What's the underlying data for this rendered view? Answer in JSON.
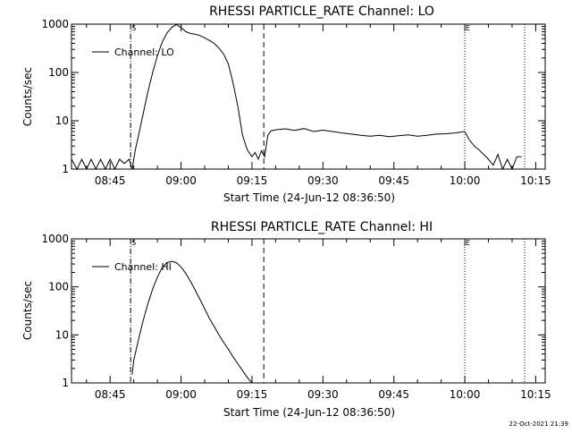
{
  "chart_data": [
    {
      "type": "line",
      "title": "RHESSI PARTICLE_RATE Channel: LO",
      "xlabel": "Start Time (24-Jun-12 08:36:50)",
      "ylabel": "Counts/sec",
      "yscale": "log",
      "ylim": [
        1,
        1000
      ],
      "xlim": [
        "08:36:50",
        "10:17:00"
      ],
      "x_ticks": [
        "08:45",
        "09:00",
        "09:15",
        "09:30",
        "09:45",
        "10:00",
        "10:15"
      ],
      "y_ticks": [
        "1",
        "10",
        "100",
        "1000"
      ],
      "legend": {
        "label": "Channel: LO",
        "placement": "top-left"
      },
      "markers": [
        {
          "time": "08:49:20",
          "style": "dash-dot",
          "label": "S"
        },
        {
          "time": "09:17:30",
          "style": "dashed",
          "label": ""
        },
        {
          "time": "10:00:00",
          "style": "dotted",
          "label": "E"
        },
        {
          "time": "10:12:40",
          "style": "dotted",
          "label": ""
        }
      ],
      "series": [
        {
          "name": "Channel: LO",
          "x": [
            "08:36:50",
            "08:38:00",
            "08:39:00",
            "08:40:00",
            "08:41:00",
            "08:42:00",
            "08:43:00",
            "08:44:00",
            "08:45:00",
            "08:46:00",
            "08:47:00",
            "08:48:00",
            "08:49:00",
            "08:49:40",
            "08:50:20",
            "08:51:00",
            "08:52:00",
            "08:53:00",
            "08:54:00",
            "08:55:00",
            "08:56:00",
            "08:57:00",
            "08:58:00",
            "08:59:00",
            "09:00:00",
            "09:01:00",
            "09:02:00",
            "09:03:00",
            "09:04:00",
            "09:05:00",
            "09:06:00",
            "09:07:00",
            "09:08:00",
            "09:09:00",
            "09:10:00",
            "09:11:00",
            "09:12:00",
            "09:13:00",
            "09:14:00",
            "09:15:00",
            "09:15:40",
            "09:16:20",
            "09:17:00",
            "09:17:40",
            "09:18:20",
            "09:19:00",
            "09:20:00",
            "09:22:00",
            "09:24:00",
            "09:26:00",
            "09:28:00",
            "09:30:00",
            "09:32:00",
            "09:34:00",
            "09:36:00",
            "09:38:00",
            "09:40:00",
            "09:42:00",
            "09:44:00",
            "09:46:00",
            "09:48:00",
            "09:50:00",
            "09:52:00",
            "09:54:00",
            "09:56:00",
            "09:58:00",
            "10:00:00",
            "10:01:00",
            "10:02:00",
            "10:03:00",
            "10:04:00",
            "10:05:00",
            "10:06:00",
            "10:07:00",
            "10:08:00",
            "10:09:00",
            "10:10:00",
            "10:11:00",
            "10:12:00"
          ],
          "y": [
            1.6,
            1.0,
            1.6,
            1.0,
            1.6,
            1.0,
            1.6,
            1.0,
            1.6,
            1.0,
            1.6,
            1.3,
            1.6,
            1.0,
            2.5,
            5,
            14,
            40,
            100,
            220,
            420,
            650,
            850,
            980,
            850,
            700,
            640,
            620,
            580,
            520,
            460,
            400,
            320,
            240,
            150,
            60,
            20,
            5,
            2.5,
            1.8,
            2.2,
            1.6,
            2.4,
            1.8,
            5,
            6.2,
            6.5,
            6.8,
            6.3,
            6.9,
            6.0,
            6.4,
            6.0,
            5.6,
            5.3,
            5.0,
            4.8,
            5.0,
            4.7,
            4.9,
            5.1,
            4.8,
            5.0,
            5.3,
            5.4,
            5.6,
            6.0,
            4.0,
            3.0,
            2.5,
            2.0,
            1.6,
            1.2,
            2.0,
            1.0,
            1.6,
            1.0,
            1.8,
            1.8
          ]
        }
      ]
    },
    {
      "type": "line",
      "title": "RHESSI PARTICLE_RATE Channel: HI",
      "xlabel": "Start Time (24-Jun-12 08:36:50)",
      "ylabel": "Counts/sec",
      "yscale": "log",
      "ylim": [
        1,
        1000
      ],
      "xlim": [
        "08:36:50",
        "10:17:00"
      ],
      "x_ticks": [
        "08:45",
        "09:00",
        "09:15",
        "09:30",
        "09:45",
        "10:00",
        "10:15"
      ],
      "y_ticks": [
        "1",
        "10",
        "100",
        "1000"
      ],
      "legend": {
        "label": "Channel: HI",
        "placement": "top-left"
      },
      "markers": [
        {
          "time": "08:49:20",
          "style": "dash-dot",
          "label": "S"
        },
        {
          "time": "09:17:30",
          "style": "dashed",
          "label": ""
        },
        {
          "time": "10:00:00",
          "style": "dotted",
          "label": "E"
        },
        {
          "time": "10:12:40",
          "style": "dotted",
          "label": ""
        }
      ],
      "series": [
        {
          "name": "Channel: HI",
          "x": [
            "08:49:40",
            "08:50:00",
            "08:51:00",
            "08:52:00",
            "08:53:00",
            "08:54:00",
            "08:55:00",
            "08:56:00",
            "08:57:00",
            "08:58:00",
            "08:59:00",
            "09:00:00",
            "09:01:00",
            "09:02:00",
            "09:03:00",
            "09:04:00",
            "09:05:00",
            "09:06:00",
            "09:07:00",
            "09:08:00",
            "09:09:00",
            "09:10:00",
            "09:11:00",
            "09:12:00",
            "09:13:00",
            "09:14:00",
            "09:15:00"
          ],
          "y": [
            1.5,
            3,
            8,
            20,
            45,
            90,
            160,
            250,
            320,
            340,
            320,
            260,
            190,
            130,
            85,
            55,
            35,
            22,
            15,
            10,
            7,
            5,
            3.5,
            2.5,
            1.8,
            1.3,
            1.0
          ]
        }
      ]
    }
  ],
  "footer": {
    "timestamp": "22-Oct-2021 21:39"
  }
}
